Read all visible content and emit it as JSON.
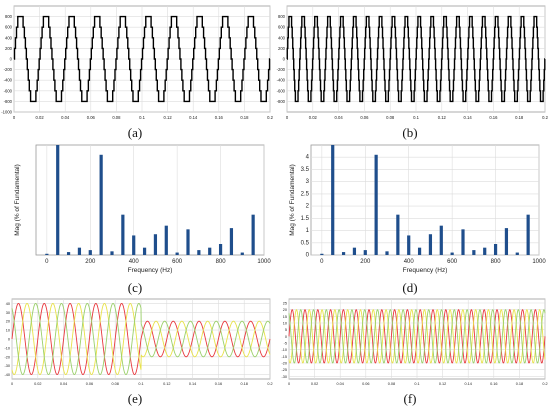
{
  "captions": {
    "a": "(a)",
    "b": "(b)",
    "c": "(c)",
    "d": "(d)",
    "e": "(e)",
    "f": "(f)"
  },
  "chart_data": [
    {
      "id": "a",
      "type": "line",
      "title": "",
      "xlabel": "",
      "ylabel": "",
      "xlim": [
        0,
        0.2
      ],
      "ylim": [
        -1000,
        1000
      ],
      "yticks": [
        "800",
        "600",
        "400",
        "200",
        "0",
        "-200",
        "-400",
        "-600",
        "-800",
        "-1000"
      ],
      "xticks": [
        "0",
        "0.02",
        "0.04",
        "0.06",
        "0.08",
        "0.1",
        "0.12",
        "0.14",
        "0.16",
        "0.18",
        "0.2"
      ],
      "grid": true,
      "series": [
        {
          "waveform": "stepped multilevel",
          "frequency_hz": 50,
          "levels": [
            -800,
            -600,
            -400,
            -200,
            0,
            200,
            400,
            600,
            800
          ]
        }
      ],
      "color": "#000000"
    },
    {
      "id": "b",
      "type": "line",
      "title": "",
      "xlabel": "",
      "ylabel": "",
      "xlim": [
        0,
        0.2
      ],
      "ylim": [
        -1000,
        1000
      ],
      "yticks": [
        "800",
        "600",
        "400",
        "200",
        "0",
        "-200",
        "-400",
        "-600",
        "-800"
      ],
      "xticks": [
        "0",
        "0.02",
        "0.04",
        "0.06",
        "0.08",
        "0.1",
        "0.12",
        "0.14",
        "0.16",
        "0.18",
        "0.2"
      ],
      "grid": true,
      "series": [
        {
          "waveform": "stepped multilevel",
          "frequency_hz": 100,
          "levels": [
            -800,
            -600,
            -400,
            -200,
            0,
            200,
            400,
            600,
            800
          ]
        }
      ],
      "color": "#000000"
    },
    {
      "id": "c",
      "type": "bar",
      "title": "",
      "xlabel": "Frequency (Hz)",
      "ylabel": "Mag (% of Fundamental)",
      "xlim": [
        -50,
        1000
      ],
      "ylim": [
        0,
        4.5
      ],
      "xticks": [
        "0",
        "200",
        "400",
        "600",
        "800",
        "1000"
      ],
      "yticks": [],
      "grid": true,
      "x": [
        0,
        50,
        100,
        150,
        200,
        250,
        300,
        350,
        400,
        450,
        500,
        550,
        600,
        650,
        700,
        750,
        800,
        850,
        900,
        950
      ],
      "values": [
        0.05,
        4.5,
        0.12,
        0.3,
        0.2,
        4.1,
        0.15,
        1.65,
        0.8,
        0.3,
        0.85,
        1.2,
        0.1,
        1.05,
        0.2,
        0.3,
        0.45,
        1.1,
        0.1,
        1.65
      ],
      "color": "#1f4e8c"
    },
    {
      "id": "d",
      "type": "bar",
      "title": "",
      "xlabel": "Frequency (Hz)",
      "ylabel": "Mag (% of Fundamental)",
      "xlim": [
        -50,
        1000
      ],
      "ylim": [
        0,
        4.5
      ],
      "xticks": [
        "0",
        "200",
        "400",
        "600",
        "800",
        "1000"
      ],
      "yticks": [
        "4",
        "3.5",
        "3",
        "2.5",
        "2",
        "1.5",
        "1",
        "0.5",
        "0"
      ],
      "grid": true,
      "x": [
        0,
        50,
        100,
        150,
        200,
        250,
        300,
        350,
        400,
        450,
        500,
        550,
        600,
        650,
        700,
        750,
        800,
        850,
        900,
        950
      ],
      "values": [
        0.05,
        4.5,
        0.12,
        0.3,
        0.2,
        4.1,
        0.15,
        1.65,
        0.8,
        0.3,
        0.85,
        1.2,
        0.1,
        1.05,
        0.2,
        0.3,
        0.45,
        1.1,
        0.1,
        1.65
      ],
      "color": "#1f4e8c"
    },
    {
      "id": "e",
      "type": "line",
      "title": "",
      "xlabel": "",
      "ylabel": "",
      "xlim": [
        0,
        0.2
      ],
      "ylim": [
        -45,
        45
      ],
      "yticks": [
        "40",
        "30",
        "20",
        "10",
        "0",
        "-10",
        "-20",
        "-30",
        "-40"
      ],
      "xticks": [
        "0",
        "0.02",
        "0.04",
        "0.06",
        "0.08",
        "0.1",
        "0.12",
        "0.14",
        "0.16",
        "0.18",
        "0.2"
      ],
      "grid": true,
      "series": [
        {
          "phase_deg": 0,
          "color": "#e8383d",
          "segments": [
            {
              "t_end": 0.1,
              "amplitude": 40,
              "frequency_hz": 50
            },
            {
              "t_end": 0.2,
              "amplitude": 20,
              "frequency_hz": 50
            }
          ]
        },
        {
          "phase_deg": -120,
          "color": "#e8e24a",
          "segments": [
            {
              "t_end": 0.1,
              "amplitude": 40,
              "frequency_hz": 50
            },
            {
              "t_end": 0.2,
              "amplitude": 20,
              "frequency_hz": 50
            }
          ]
        },
        {
          "phase_deg": 120,
          "color": "#9bd06a",
          "segments": [
            {
              "t_end": 0.1,
              "amplitude": 40,
              "frequency_hz": 50
            },
            {
              "t_end": 0.2,
              "amplitude": 20,
              "frequency_hz": 50
            }
          ]
        }
      ]
    },
    {
      "id": "f",
      "type": "line",
      "title": "",
      "xlabel": "",
      "ylabel": "",
      "xlim": [
        0,
        0.2
      ],
      "ylim": [
        -32,
        28
      ],
      "yticks": [
        "25",
        "20",
        "15",
        "10",
        "5",
        "0",
        "-5",
        "-10",
        "-15",
        "-20",
        "-25",
        "-30"
      ],
      "xticks": [
        "0",
        "0.02",
        "0.04",
        "0.06",
        "0.08",
        "0.1",
        "0.12",
        "0.14",
        "0.16",
        "0.18",
        "0.2"
      ],
      "grid": true,
      "series": [
        {
          "phase_deg": 0,
          "color": "#e8383d",
          "segments": [
            {
              "t_end": 0.2,
              "amplitude": 20,
              "frequency_hz": 100
            }
          ]
        },
        {
          "phase_deg": -120,
          "color": "#e8e24a",
          "segments": [
            {
              "t_end": 0.2,
              "amplitude": 20,
              "frequency_hz": 100
            }
          ]
        },
        {
          "phase_deg": 120,
          "color": "#9bd06a",
          "segments": [
            {
              "t_end": 0.2,
              "amplitude": 20,
              "frequency_hz": 100
            }
          ]
        }
      ]
    }
  ]
}
